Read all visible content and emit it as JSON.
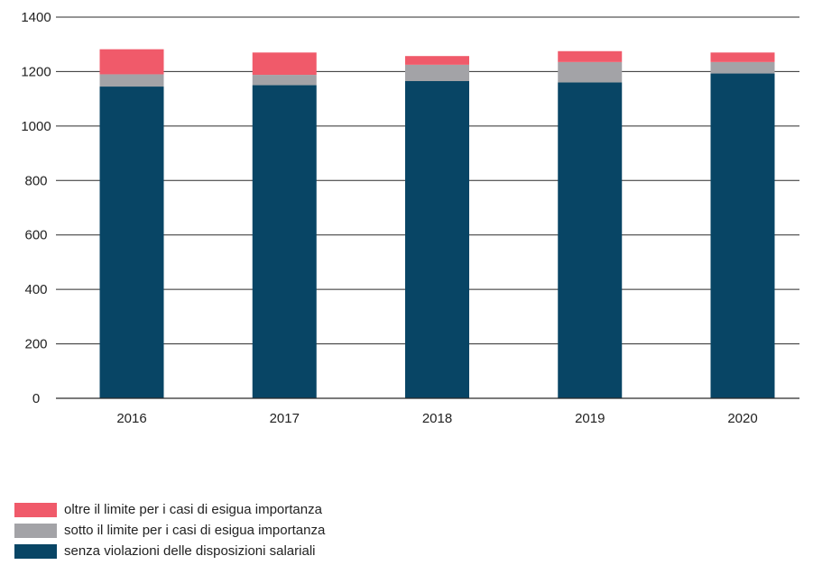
{
  "chart_data": {
    "type": "bar",
    "stacked": true,
    "categories": [
      "2016",
      "2017",
      "2018",
      "2019",
      "2020"
    ],
    "series": [
      {
        "name": "senza violazioni delle disposizioni salariali",
        "color": "#084565",
        "values": [
          1145,
          1150,
          1165,
          1160,
          1193
        ]
      },
      {
        "name": "sotto il limite per i casi di esigua importanza",
        "color": "#a3a3a7",
        "values": [
          45,
          38,
          60,
          75,
          42
        ]
      },
      {
        "name": "oltre il limite per i casi di esigua importanza",
        "color": "#f05a6a",
        "values": [
          92,
          82,
          32,
          40,
          35
        ]
      }
    ],
    "ylim": [
      0,
      1400
    ],
    "yticks": [
      "0",
      "200",
      "400",
      "600",
      "800",
      "1000",
      "1200",
      "1400"
    ],
    "grid": true,
    "legend_position": "bottom-left",
    "legend_order": [
      2,
      1,
      0
    ]
  }
}
